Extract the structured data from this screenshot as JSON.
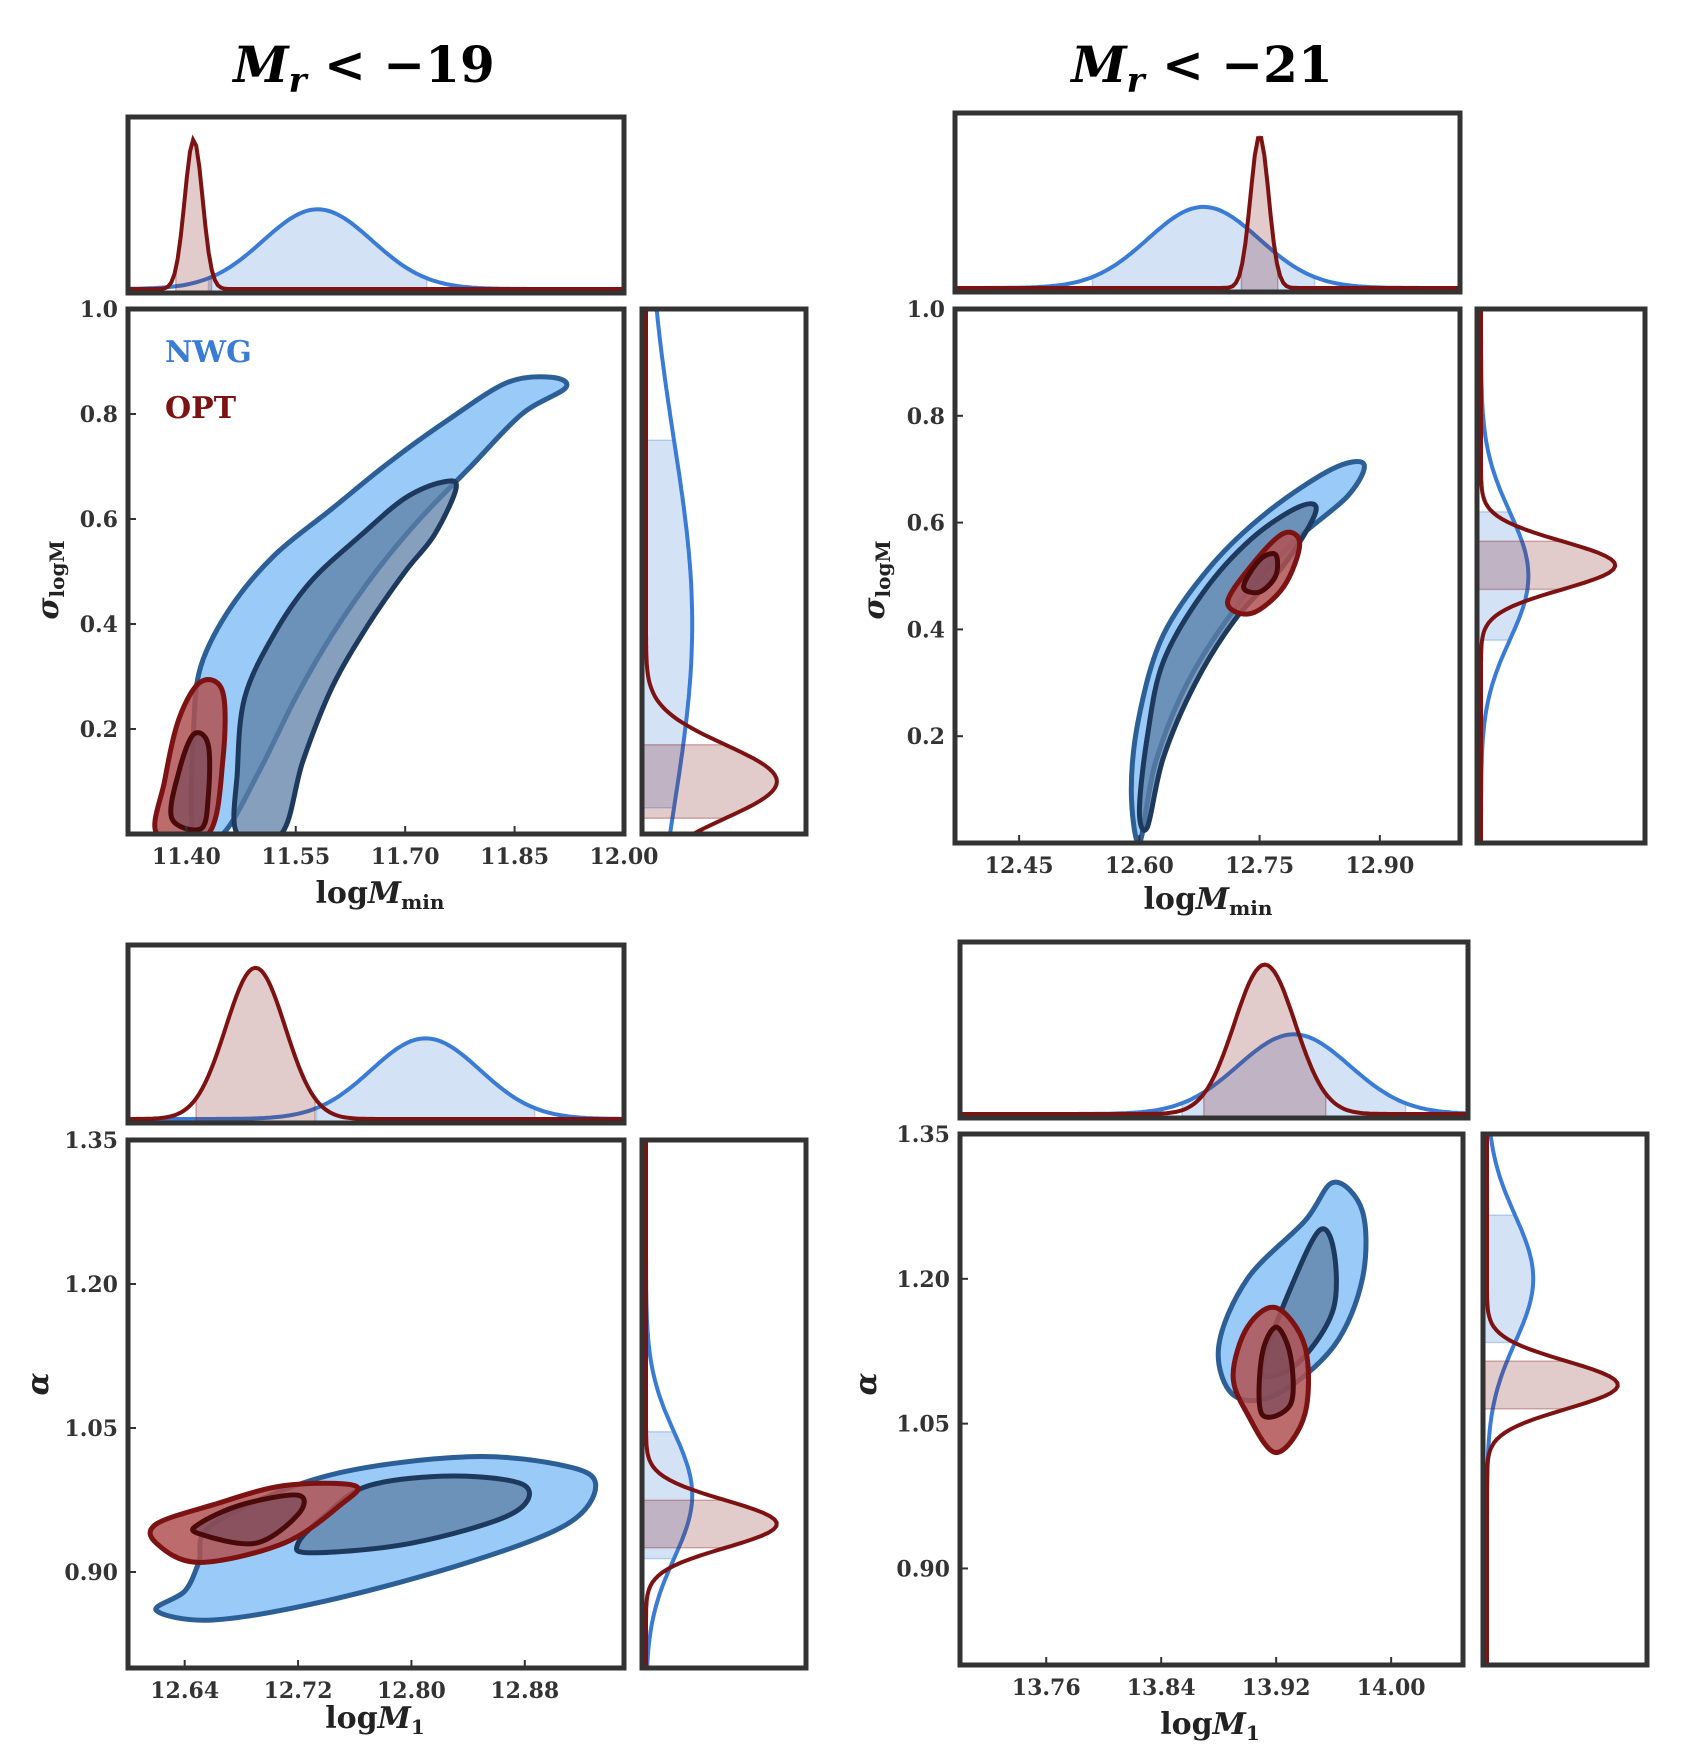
{
  "colors": {
    "nwg": "#3a7bd5",
    "nwg_fill_outer": "#8ec4f7",
    "nwg_fill_inner": "#5e7fa6",
    "nwg_line": "#2b5f95",
    "nwg_line_inner": "#1d3a5e",
    "opt": "#7d1212",
    "opt_fill_outer": "#b05252",
    "opt_fill_inner": "#7a4a5a",
    "opt_line_inner": "#4a0a0a",
    "frame": "#333333"
  },
  "chart_data": [
    {
      "type": "contour",
      "panel": "top-left",
      "title": "M_r < −19",
      "title_main": "M",
      "title_sub": "r",
      "title_rest": " < −19",
      "xlabel": "logM_min",
      "xlabel_main": "log",
      "xlabel_var": "M",
      "xlabel_sub": "min",
      "ylabel": "σ_logM",
      "ylabel_var": "σ",
      "ylabel_sub": "logM",
      "xlim": [
        11.32,
        12.0
      ],
      "ylim": [
        0.0,
        1.0
      ],
      "xticks": [
        "11.40",
        "11.55",
        "11.70",
        "11.85",
        "12.00"
      ],
      "xtick_values": [
        11.4,
        11.55,
        11.7,
        11.85,
        12.0
      ],
      "yticks": [
        "0.2",
        "0.4",
        "0.6",
        "0.8",
        "1.0"
      ],
      "ytick_values": [
        0.2,
        0.4,
        0.6,
        0.8,
        1.0
      ],
      "legend": [
        {
          "label": "NWG",
          "series": "nwg"
        },
        {
          "label": "OPT",
          "series": "opt"
        }
      ],
      "series": [
        {
          "name": "NWG",
          "outer": [
            [
              11.45,
              0
            ],
            [
              11.5,
              0.12
            ],
            [
              11.55,
              0.26
            ],
            [
              11.6,
              0.38
            ],
            [
              11.66,
              0.5
            ],
            [
              11.72,
              0.6
            ],
            [
              11.79,
              0.7
            ],
            [
              11.86,
              0.8
            ],
            [
              11.92,
              0.85
            ],
            [
              11.9,
              0.87
            ],
            [
              11.84,
              0.86
            ],
            [
              11.76,
              0.79
            ],
            [
              11.68,
              0.71
            ],
            [
              11.6,
              0.62
            ],
            [
              11.52,
              0.53
            ],
            [
              11.46,
              0.43
            ],
            [
              11.42,
              0.32
            ],
            [
              11.41,
              0.2
            ],
            [
              11.41,
              0
            ]
          ],
          "inner": [
            [
              11.53,
              0
            ],
            [
              11.56,
              0.14
            ],
            [
              11.6,
              0.28
            ],
            [
              11.65,
              0.4
            ],
            [
              11.7,
              0.5
            ],
            [
              11.74,
              0.57
            ],
            [
              11.77,
              0.66
            ],
            [
              11.75,
              0.67
            ],
            [
              11.7,
              0.64
            ],
            [
              11.64,
              0.57
            ],
            [
              11.57,
              0.48
            ],
            [
              11.52,
              0.38
            ],
            [
              11.48,
              0.26
            ],
            [
              11.47,
              0.12
            ],
            [
              11.47,
              0
            ]
          ]
        },
        {
          "name": "OPT",
          "outer": [
            [
              11.36,
              0
            ],
            [
              11.37,
              0.1
            ],
            [
              11.39,
              0.22
            ],
            [
              11.42,
              0.29
            ],
            [
              11.45,
              0.27
            ],
            [
              11.45,
              0.14
            ],
            [
              11.43,
              0
            ]
          ],
          "inner": [
            [
              11.38,
              0.03
            ],
            [
              11.39,
              0.12
            ],
            [
              11.41,
              0.19
            ],
            [
              11.43,
              0.17
            ],
            [
              11.43,
              0.07
            ],
            [
              11.42,
              0.01
            ]
          ]
        }
      ],
      "marginal_x": {
        "nwg_peak": 11.58,
        "opt_peak": 11.41
      },
      "marginal_y": {
        "nwg_peak": 0.4,
        "opt_peak": 0.1
      }
    },
    {
      "type": "contour",
      "panel": "top-right",
      "title": "M_r < −21",
      "title_main": "M",
      "title_sub": "r",
      "title_rest": " < −21",
      "xlabel": "logM_min",
      "xlabel_main": "log",
      "xlabel_var": "M",
      "xlabel_sub": "min",
      "ylabel": "σ_logM",
      "ylabel_var": "σ",
      "ylabel_sub": "logM",
      "xlim": [
        12.37,
        13.0
      ],
      "ylim": [
        0.0,
        1.0
      ],
      "xticks": [
        "12.45",
        "12.60",
        "12.75",
        "12.90"
      ],
      "xtick_values": [
        12.45,
        12.6,
        12.75,
        12.9
      ],
      "yticks": [
        "0.2",
        "0.4",
        "0.6",
        "0.8",
        "1.0"
      ],
      "ytick_values": [
        0.2,
        0.4,
        0.6,
        0.8,
        1.0
      ],
      "series": [
        {
          "name": "NWG",
          "outer": [
            [
              12.6,
              0
            ],
            [
              12.62,
              0.15
            ],
            [
              12.66,
              0.3
            ],
            [
              12.72,
              0.44
            ],
            [
              12.79,
              0.56
            ],
            [
              12.86,
              0.65
            ],
            [
              12.88,
              0.71
            ],
            [
              12.84,
              0.7
            ],
            [
              12.76,
              0.62
            ],
            [
              12.69,
              0.52
            ],
            [
              12.63,
              0.39
            ],
            [
              12.6,
              0.24
            ],
            [
              12.59,
              0.1
            ]
          ],
          "inner": [
            [
              12.61,
              0.03
            ],
            [
              12.63,
              0.16
            ],
            [
              12.67,
              0.3
            ],
            [
              12.72,
              0.42
            ],
            [
              12.78,
              0.52
            ],
            [
              12.82,
              0.62
            ],
            [
              12.8,
              0.63
            ],
            [
              12.74,
              0.57
            ],
            [
              12.68,
              0.47
            ],
            [
              12.63,
              0.34
            ],
            [
              12.61,
              0.2
            ],
            [
              12.6,
              0.06
            ]
          ]
        },
        {
          "name": "OPT",
          "outer": [
            [
              12.71,
              0.45
            ],
            [
              12.74,
              0.52
            ],
            [
              12.78,
              0.58
            ],
            [
              12.8,
              0.56
            ],
            [
              12.78,
              0.48
            ],
            [
              12.74,
              0.43
            ]
          ],
          "inner": [
            [
              12.73,
              0.48
            ],
            [
              12.75,
              0.53
            ],
            [
              12.77,
              0.54
            ],
            [
              12.77,
              0.5
            ],
            [
              12.75,
              0.47
            ]
          ]
        }
      ],
      "marginal_x": {
        "nwg_peak": 12.68,
        "opt_peak": 12.75
      },
      "marginal_y": {
        "nwg_peak": 0.5,
        "opt_peak": 0.52
      }
    },
    {
      "type": "contour",
      "panel": "bottom-left",
      "xlabel": "logM_1",
      "xlabel_main": "log",
      "xlabel_var": "M",
      "xlabel_sub": "1",
      "ylabel": "α",
      "ylabel_var": "α",
      "ylabel_sub": "",
      "xlim": [
        12.6,
        12.95
      ],
      "ylim": [
        0.8,
        1.35
      ],
      "xticks": [
        "12.64",
        "12.72",
        "12.80",
        "12.88"
      ],
      "xtick_values": [
        12.64,
        12.72,
        12.8,
        12.88
      ],
      "yticks": [
        "0.90",
        "1.05",
        "1.20",
        "1.35"
      ],
      "ytick_values": [
        0.9,
        1.05,
        1.2,
        1.35
      ],
      "series": [
        {
          "name": "NWG",
          "outer": [
            [
              12.62,
              0.86
            ],
            [
              12.66,
              0.85
            ],
            [
              12.74,
              0.87
            ],
            [
              12.84,
              0.91
            ],
            [
              12.91,
              0.95
            ],
            [
              12.93,
              0.99
            ],
            [
              12.91,
              1.01
            ],
            [
              12.84,
              1.02
            ],
            [
              12.74,
              1.0
            ],
            [
              12.66,
              0.95
            ],
            [
              12.65,
              0.91
            ],
            [
              12.64,
              0.88
            ]
          ],
          "inner": [
            [
              12.73,
              0.92
            ],
            [
              12.8,
              0.93
            ],
            [
              12.87,
              0.96
            ],
            [
              12.88,
              0.99
            ],
            [
              12.83,
              1.0
            ],
            [
              12.77,
              0.99
            ],
            [
              12.74,
              0.96
            ],
            [
              12.72,
              0.93
            ]
          ]
        },
        {
          "name": "OPT",
          "outer": [
            [
              12.62,
              0.93
            ],
            [
              12.65,
              0.91
            ],
            [
              12.71,
              0.93
            ],
            [
              12.75,
              0.97
            ],
            [
              12.76,
              0.99
            ],
            [
              12.71,
              0.99
            ],
            [
              12.66,
              0.97
            ],
            [
              12.62,
              0.95
            ]
          ],
          "inner": [
            [
              12.65,
              0.94
            ],
            [
              12.69,
              0.93
            ],
            [
              12.72,
              0.96
            ],
            [
              12.72,
              0.98
            ],
            [
              12.68,
              0.97
            ],
            [
              12.65,
              0.95
            ]
          ]
        }
      ],
      "marginal_x": {
        "nwg_peak": 12.81,
        "opt_peak": 12.69
      },
      "marginal_y": {
        "nwg_peak": 0.98,
        "opt_peak": 0.95
      }
    },
    {
      "type": "contour",
      "panel": "bottom-right",
      "xlabel": "logM_1",
      "xlabel_main": "log",
      "xlabel_var": "M",
      "xlabel_sub": "1",
      "ylabel": "α",
      "ylabel_var": "α",
      "ylabel_sub": "",
      "xlim": [
        13.7,
        14.05
      ],
      "ylim": [
        0.8,
        1.35
      ],
      "xticks": [
        "13.76",
        "13.84",
        "13.92",
        "14.00"
      ],
      "xtick_values": [
        13.76,
        13.84,
        13.92,
        14.0
      ],
      "yticks": [
        "0.90",
        "1.05",
        "1.20",
        "1.35"
      ],
      "ytick_values": [
        0.9,
        1.05,
        1.2,
        1.35
      ],
      "series": [
        {
          "name": "NWG",
          "outer": [
            [
              13.88,
              1.13
            ],
            [
              13.9,
              1.2
            ],
            [
              13.94,
              1.26
            ],
            [
              13.96,
              1.3
            ],
            [
              13.98,
              1.27
            ],
            [
              13.98,
              1.2
            ],
            [
              13.96,
              1.13
            ],
            [
              13.92,
              1.08
            ],
            [
              13.89,
              1.08
            ]
          ],
          "inner": [
            [
              13.91,
              1.11
            ],
            [
              13.93,
              1.19
            ],
            [
              13.95,
              1.25
            ],
            [
              13.96,
              1.23
            ],
            [
              13.96,
              1.17
            ],
            [
              13.94,
              1.12
            ],
            [
              13.92,
              1.1
            ]
          ]
        },
        {
          "name": "OPT",
          "outer": [
            [
              13.89,
              1.1
            ],
            [
              13.9,
              1.06
            ],
            [
              13.92,
              1.02
            ],
            [
              13.94,
              1.06
            ],
            [
              13.94,
              1.13
            ],
            [
              13.92,
              1.17
            ],
            [
              13.9,
              1.15
            ]
          ],
          "inner": [
            [
              13.91,
              1.06
            ],
            [
              13.93,
              1.07
            ],
            [
              13.93,
              1.12
            ],
            [
              13.92,
              1.15
            ],
            [
              13.91,
              1.12
            ]
          ]
        }
      ],
      "marginal_x": {
        "nwg_peak": 13.93,
        "opt_peak": 13.91
      },
      "marginal_y": {
        "nwg_peak": 1.2,
        "opt_peak": 1.09
      }
    }
  ]
}
